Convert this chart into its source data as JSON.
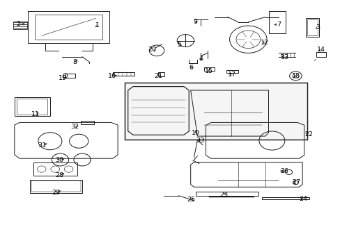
{
  "title": "",
  "bg_color": "#ffffff",
  "line_color": "#1a1a1a",
  "label_color": "#000000",
  "fig_width": 4.89,
  "fig_height": 3.6,
  "dpi": 100
}
